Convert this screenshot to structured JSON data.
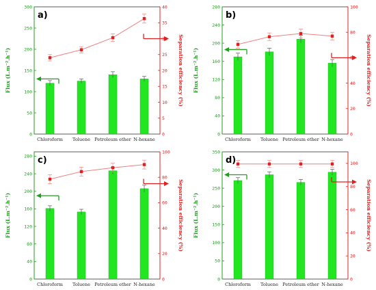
{
  "colors": {
    "bar": "#22e622",
    "bar_edge": "#11b011",
    "line": "#f08080",
    "line_marker": "#e02020",
    "left_axis": "#1f9e1f",
    "right_axis": "#e02020",
    "error": "#555555"
  },
  "chart_data": [
    {
      "type": "bar+line",
      "panel_label": "a)",
      "categories": [
        "Chloroform",
        "Toluene",
        "Petroleum ether",
        "N-hexane"
      ],
      "ylabel_left": "Flux (L.m⁻².h⁻¹)",
      "ylabel_right": "Separation efficiency (%)",
      "ylim_left": [
        0,
        300
      ],
      "yticks_left": [
        0,
        50,
        100,
        150,
        200,
        250,
        300
      ],
      "ylim_right": [
        0,
        40
      ],
      "yticks_right": [
        0,
        5,
        10,
        15,
        20,
        25,
        30,
        35,
        40
      ],
      "series": [
        {
          "name": "Flux",
          "kind": "bar",
          "axis": "left",
          "values": [
            120,
            125,
            140,
            130
          ],
          "errors": [
            6,
            5,
            7,
            6
          ]
        },
        {
          "name": "Separation efficiency",
          "kind": "line",
          "axis": "right",
          "values": [
            24,
            26.5,
            30.3,
            36.3
          ],
          "errors": [
            1,
            1,
            1.2,
            1.4
          ]
        }
      ],
      "arrows": [
        {
          "axis": "left",
          "y": 130,
          "dir": "left"
        },
        {
          "axis": "right",
          "y": 30,
          "dir": "right"
        }
      ]
    },
    {
      "type": "bar+line",
      "panel_label": "b)",
      "categories": [
        "Chloroform",
        "Toluene",
        "Petroleum ether",
        "N-hexane"
      ],
      "ylabel_left": "Flux (L.m⁻².h⁻¹)",
      "ylabel_right": "Separation efficiency (%)",
      "ylim_left": [
        0,
        280
      ],
      "yticks_left": [
        0,
        40,
        80,
        120,
        160,
        200,
        240,
        280
      ],
      "ylim_right": [
        0,
        100
      ],
      "yticks_right": [
        0,
        20,
        40,
        60,
        80,
        100
      ],
      "series": [
        {
          "name": "Flux",
          "kind": "bar",
          "axis": "left",
          "values": [
            170,
            181,
            209,
            156
          ],
          "errors": [
            8,
            8,
            8,
            8
          ]
        },
        {
          "name": "Separation efficiency",
          "kind": "line",
          "axis": "right",
          "values": [
            70.5,
            76.5,
            79,
            77
          ],
          "errors": [
            3,
            3,
            3.5,
            3
          ]
        }
      ],
      "arrows": [
        {
          "axis": "left",
          "y": 186,
          "dir": "left"
        },
        {
          "axis": "right",
          "y": 60,
          "dir": "right"
        }
      ]
    },
    {
      "type": "bar+line",
      "panel_label": "c)",
      "categories": [
        "Chloroform",
        "Toluene",
        "Petroleum ether",
        "N-hexane"
      ],
      "ylabel_left": "Flux (L.m⁻².h⁻¹)",
      "ylabel_right": "Separation efficiency (%)",
      "ylim_left": [
        0,
        290
      ],
      "yticks_left": [
        0,
        40,
        80,
        120,
        160,
        200,
        240,
        280
      ],
      "ylim_right": [
        0,
        100
      ],
      "yticks_right": [
        0,
        20,
        40,
        60,
        80,
        100
      ],
      "series": [
        {
          "name": "Flux",
          "kind": "bar",
          "axis": "left",
          "values": [
            161,
            153,
            247,
            206
          ],
          "errors": [
            6,
            6,
            8,
            8
          ]
        },
        {
          "name": "Separation efficiency",
          "kind": "line",
          "axis": "right",
          "values": [
            78.5,
            84.5,
            87.5,
            90
          ],
          "errors": [
            3.5,
            3.5,
            3.5,
            3.5
          ]
        }
      ],
      "arrows": [
        {
          "axis": "left",
          "y": 190,
          "dir": "left"
        },
        {
          "axis": "right",
          "y": 75,
          "dir": "right"
        }
      ]
    },
    {
      "type": "bar+line",
      "panel_label": "d)",
      "categories": [
        "Chloroform",
        "Toluene",
        "Petroleum ether",
        "N-hexane"
      ],
      "ylabel_left": "Flux (L.m⁻².h⁻¹)",
      "ylabel_right": "Separation efficiency (%)",
      "ylim_left": [
        0,
        350
      ],
      "yticks_left": [
        0,
        50,
        100,
        150,
        200,
        250,
        300,
        350
      ],
      "ylim_right": [
        0,
        110
      ],
      "yticks_right": [
        0,
        20,
        40,
        60,
        80,
        100
      ],
      "series": [
        {
          "name": "Flux",
          "kind": "bar",
          "axis": "left",
          "values": [
            271,
            287,
            266,
            294
          ],
          "errors": [
            8,
            8,
            8,
            8
          ]
        },
        {
          "name": "Separation efficiency",
          "kind": "line",
          "axis": "right",
          "values": [
            99.5,
            99.5,
            99.5,
            99.5
          ],
          "errors": [
            3,
            3,
            3,
            3
          ]
        }
      ],
      "arrows": [
        {
          "axis": "left",
          "y": 287,
          "dir": "left"
        },
        {
          "axis": "right",
          "y": 84,
          "dir": "right"
        }
      ]
    }
  ]
}
